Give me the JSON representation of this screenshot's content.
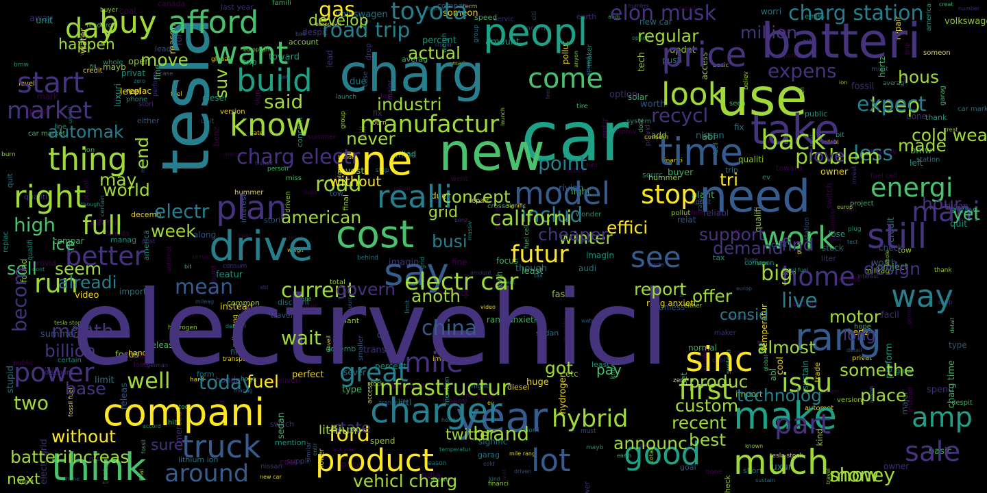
{
  "palette": {
    "purple": "#46337e",
    "indigo": "#440154",
    "blue": "#365c8d",
    "teal": "#277f8e",
    "green": "#1fa187",
    "lightgreen": "#4ac16d",
    "lime": "#a0da39",
    "yellow": "#fde725",
    "background": "#000000"
  },
  "words": [
    {
      "text": "electrvehicl",
      "color": "#46337e"
    },
    {
      "text": "car",
      "color": "#1fa187"
    },
    {
      "text": "tesla",
      "color": "#277f8e"
    },
    {
      "text": "charg",
      "color": "#277f8e"
    },
    {
      "text": "new",
      "color": "#4ac16d"
    },
    {
      "text": "need",
      "color": "#365c8d"
    },
    {
      "text": "use",
      "color": "#a0da39"
    },
    {
      "text": "batteri",
      "color": "#46337e"
    },
    {
      "text": "price",
      "color": "#46337e"
    },
    {
      "text": "take",
      "color": "#46337e"
    },
    {
      "text": "time",
      "color": "#365c8d"
    },
    {
      "text": "peopl",
      "color": "#1fa187"
    },
    {
      "text": "one",
      "color": "#fde725"
    },
    {
      "text": "year",
      "color": "#365c8d"
    },
    {
      "text": "cost",
      "color": "#4ac16d"
    },
    {
      "text": "drive",
      "color": "#277f8e"
    },
    {
      "text": "say",
      "color": "#365c8d"
    },
    {
      "text": "compani",
      "color": "#fde725"
    },
    {
      "text": "think",
      "color": "#4ac16d"
    },
    {
      "text": "make",
      "color": "#1fa187"
    },
    {
      "text": "much",
      "color": "#a0da39"
    },
    {
      "text": "still",
      "color": "#46337e"
    },
    {
      "text": "rang",
      "color": "#365c8d"
    },
    {
      "text": "way",
      "color": "#277f8e"
    },
    {
      "text": "model",
      "color": "#365c8d"
    },
    {
      "text": "realli",
      "color": "#277f8e"
    },
    {
      "text": "charger",
      "color": "#277f8e"
    },
    {
      "text": "product",
      "color": "#fde725"
    },
    {
      "text": "mile",
      "color": "#46337e"
    },
    {
      "text": "plan",
      "color": "#46337e"
    },
    {
      "text": "want",
      "color": "#4ac16d"
    },
    {
      "text": "buy",
      "color": "#a0da39"
    },
    {
      "text": "afford",
      "color": "#4ac16d"
    },
    {
      "text": "day",
      "color": "#a0da39"
    },
    {
      "text": "know",
      "color": "#a0da39"
    },
    {
      "text": "build",
      "color": "#1fa187"
    },
    {
      "text": "come",
      "color": "#4ac16d"
    },
    {
      "text": "look",
      "color": "#a0da39"
    },
    {
      "text": "back",
      "color": "#a0da39"
    },
    {
      "text": "thing",
      "color": "#a0da39"
    },
    {
      "text": "right",
      "color": "#a0da39"
    },
    {
      "text": "start",
      "color": "#46337e"
    },
    {
      "text": "market",
      "color": "#46337e"
    },
    {
      "text": "energi",
      "color": "#4ac16d"
    },
    {
      "text": "work",
      "color": "#4ac16d"
    },
    {
      "text": "good",
      "color": "#1fa187"
    },
    {
      "text": "amp",
      "color": "#1fa187"
    },
    {
      "text": "hybrid",
      "color": "#a0da39"
    },
    {
      "text": "first",
      "color": "#a0da39"
    },
    {
      "text": "issu",
      "color": "#a0da39"
    },
    {
      "text": "electr car",
      "color": "#a0da39"
    },
    {
      "text": "futur",
      "color": "#fde725"
    },
    {
      "text": "infrastructur",
      "color": "#a0da39"
    },
    {
      "text": "manufactur",
      "color": "#a0da39"
    },
    {
      "text": "truck",
      "color": "#365c8d"
    },
    {
      "text": "power",
      "color": "#46337e"
    },
    {
      "text": "around",
      "color": "#365c8d"
    },
    {
      "text": "lot",
      "color": "#365c8d"
    },
    {
      "text": "great",
      "color": "#277f8e"
    },
    {
      "text": "well",
      "color": "#a0da39"
    },
    {
      "text": "full",
      "color": "#a0da39"
    },
    {
      "text": "better",
      "color": "#46337e"
    },
    {
      "text": "home",
      "color": "#46337e"
    },
    {
      "text": "live",
      "color": "#277f8e"
    },
    {
      "text": "big",
      "color": "#a0da39"
    },
    {
      "text": "stop",
      "color": "#fde725"
    },
    {
      "text": "see",
      "color": "#365c8d"
    },
    {
      "text": "mani",
      "color": "#46337e"
    },
    {
      "text": "sale",
      "color": "#46337e"
    },
    {
      "text": "part",
      "color": "#46337e"
    },
    {
      "text": "less",
      "color": "#277f8e"
    },
    {
      "text": "problem",
      "color": "#a0da39"
    },
    {
      "text": "keep",
      "color": "#a0da39"
    },
    {
      "text": "expect",
      "color": "#277f8e"
    },
    {
      "text": "toyota",
      "color": "#277f8e"
    },
    {
      "text": "gas",
      "color": "#fde725"
    },
    {
      "text": "road",
      "color": "#a0da39"
    },
    {
      "text": "road trip",
      "color": "#277f8e"
    },
    {
      "text": "elon musk",
      "color": "#46337e"
    },
    {
      "text": "charg station",
      "color": "#277f8e"
    },
    {
      "text": "charg electr",
      "color": "#46337e"
    },
    {
      "text": "said",
      "color": "#a0da39"
    },
    {
      "text": "includ",
      "color": "#277f8e"
    },
    {
      "text": "recycl",
      "color": "#46337e"
    },
    {
      "text": "point",
      "color": "#277f8e"
    },
    {
      "text": "mean",
      "color": "#365c8d"
    },
    {
      "text": "current",
      "color": "#a0da39"
    },
    {
      "text": "run",
      "color": "#a0da39"
    },
    {
      "text": "ice",
      "color": "#4ac16d"
    },
    {
      "text": "sell",
      "color": "#4ac16d"
    },
    {
      "text": "high",
      "color": "#4ac16d"
    },
    {
      "text": "month",
      "color": "#46337e"
    },
    {
      "text": "two",
      "color": "#a0da39"
    },
    {
      "text": "china",
      "color": "#365c8d"
    },
    {
      "text": "wait",
      "color": "#a0da39"
    },
    {
      "text": "today",
      "color": "#277f8e"
    },
    {
      "text": "fuel",
      "color": "#fde725"
    },
    {
      "text": "ford",
      "color": "#fde725"
    },
    {
      "text": "brand",
      "color": "#a0da39"
    },
    {
      "text": "show",
      "color": "#a0da39"
    },
    {
      "text": "without",
      "color": "#fde725"
    },
    {
      "text": "vehicl charg",
      "color": "#a0da39"
    },
    {
      "text": "batteriincreas",
      "color": "#a0da39"
    },
    {
      "text": "next",
      "color": "#a0da39"
    },
    {
      "text": "place",
      "color": "#a0da39"
    },
    {
      "text": "somethe",
      "color": "#a0da39"
    },
    {
      "text": "sinc",
      "color": "#fde725"
    },
    {
      "text": "electr",
      "color": "#277f8e"
    },
    {
      "text": "week",
      "color": "#a0da39"
    },
    {
      "text": "winter",
      "color": "#a0da39"
    },
    {
      "text": "effici",
      "color": "#fde725"
    },
    {
      "text": "demand",
      "color": "#46337e"
    },
    {
      "text": "design",
      "color": "#46337e"
    },
    {
      "text": "hour",
      "color": "#46337e"
    },
    {
      "text": "yet",
      "color": "#4ac16d"
    },
    {
      "text": "tri",
      "color": "#fde725"
    },
    {
      "text": "american",
      "color": "#a0da39"
    },
    {
      "text": "californi",
      "color": "#a0da39"
    },
    {
      "text": "expens",
      "color": "#46337e"
    },
    {
      "text": "actual",
      "color": "#a0da39"
    },
    {
      "text": "develop",
      "color": "#a0da39"
    },
    {
      "text": "happen",
      "color": "#a0da39"
    },
    {
      "text": "never",
      "color": "#a0da39"
    },
    {
      "text": "industri",
      "color": "#a0da39"
    },
    {
      "text": "cheaper",
      "color": "#46337e"
    },
    {
      "text": "report",
      "color": "#a0da39"
    },
    {
      "text": "offer",
      "color": "#a0da39"
    },
    {
      "text": "consid",
      "color": "#277f8e"
    },
    {
      "text": "long",
      "color": "#46337e"
    },
    {
      "text": "almost",
      "color": "#a0da39"
    },
    {
      "text": "motor",
      "color": "#a0da39"
    },
    {
      "text": "got",
      "color": "#a0da39"
    },
    {
      "text": "recent",
      "color": "#a0da39"
    },
    {
      "text": "announc",
      "color": "#a0da39"
    },
    {
      "text": "best",
      "color": "#a0da39"
    },
    {
      "text": "technolog",
      "color": "#277f8e"
    },
    {
      "text": "custom",
      "color": "#a0da39"
    },
    {
      "text": "produc",
      "color": "#a0da39"
    },
    {
      "text": "pay",
      "color": "#4ac16d"
    },
    {
      "text": "cold weather",
      "color": "#a0da39"
    },
    {
      "text": "made",
      "color": "#a0da39"
    },
    {
      "text": "support",
      "color": "#46337e"
    },
    {
      "text": "regular",
      "color": "#a0da39"
    },
    {
      "text": "million",
      "color": "#46337e"
    },
    {
      "text": "find",
      "color": "#46337e"
    },
    {
      "text": "hous",
      "color": "#a0da39"
    },
    {
      "text": "love",
      "color": "#46337e"
    },
    {
      "text": "billion",
      "color": "#46337e"
    },
    {
      "text": "becom",
      "color": "#46337e"
    },
    {
      "text": "automak",
      "color": "#277f8e"
    },
    {
      "text": "alreadi",
      "color": "#277f8e"
    },
    {
      "text": "seem",
      "color": "#a0da39"
    },
    {
      "text": "move",
      "color": "#a0da39"
    },
    {
      "text": "base",
      "color": "#46337e"
    },
    {
      "text": "anoth",
      "color": "#a0da39"
    },
    {
      "text": "govern",
      "color": "#46337e"
    },
    {
      "text": "state",
      "color": "#46337e"
    },
    {
      "text": "concept",
      "color": "#a0da39"
    },
    {
      "text": "grid",
      "color": "#a0da39"
    },
    {
      "text": "busi",
      "color": "#277f8e"
    },
    {
      "text": "end",
      "color": "#a0da39"
    },
    {
      "text": "may",
      "color": "#a0da39"
    },
    {
      "text": "suv",
      "color": "#a0da39"
    },
    {
      "text": "world",
      "color": "#a0da39"
    },
    {
      "text": "sure",
      "color": "#46337e"
    },
    {
      "text": "lithium",
      "color": "#a0da39"
    },
    {
      "text": "twitter",
      "color": "#a0da39"
    },
    {
      "text": "money",
      "color": "#a0da39"
    },
    {
      "text": "without",
      "color": "#fde725"
    }
  ],
  "tiny_words": [
    "amount",
    "deliveri",
    "reason",
    "consum",
    "plug",
    "resourc",
    "station",
    "basic",
    "citi",
    "quit",
    "releas",
    "found",
    "group",
    "canada",
    "improv",
    "wonder",
    "signific",
    "project",
    "percent",
    "detail",
    "servic",
    "transport",
    "interest",
    "certain",
    "person",
    "instead",
    "handl",
    "goal",
    "tax",
    "credit",
    "invest",
    "concern",
    "massiv",
    "ion",
    "trade",
    "suppli",
    "line",
    "mind",
    "hope",
    "honda",
    "famili",
    "qualifi",
    "spend",
    "stock",
    "drop",
    "fill",
    "number",
    "speed",
    "bmw",
    "hydrogen",
    "burn",
    "seen",
    "sustain",
    "case",
    "lead",
    "video",
    "solar",
    "plant",
    "creat",
    "open",
    "fine",
    "mileag",
    "abl",
    "final",
    "averag",
    "abl",
    "total",
    "set",
    "stock",
    "limit",
    "repair",
    "coal",
    "discount",
    "parts",
    "nissan",
    "hertz",
    "launch",
    "america",
    "earth",
    "push",
    "version",
    "lose",
    "kind",
    "option",
    "unveil",
    "worth",
    "away",
    "buyer",
    "cool",
    "though",
    "anyon",
    "add",
    "someon",
    "either",
    "access",
    "grow",
    "term",
    "heat",
    "liter",
    "etc",
    "left",
    "form",
    "replac",
    "short",
    "worri",
    "known",
    "global",
    "least",
    "park",
    "europ",
    "similar",
    "unit",
    "water",
    "feel",
    "charg time",
    "tech",
    "post",
    "relat",
    "unless",
    "smaller",
    "lower",
    "bad",
    "rate",
    "manag",
    "due",
    "sourc",
    "zero",
    "went",
    "tow",
    "behind",
    "accord",
    "bit",
    "perform",
    "far",
    "mayb",
    "might",
    "stori",
    "last year",
    "european",
    "ev",
    "fast",
    "focus",
    "hit",
    "believ",
    "trip",
    "done",
    "provid",
    "along",
    "sever",
    "emiss",
    "car market",
    "perfect",
    "reliabl",
    "major",
    "mile rang",
    "check",
    "despit",
    "bill",
    "hard",
    "temperatur",
    "system",
    "owner",
    "mark",
    "dont",
    "step",
    "updat",
    "merced",
    "benz",
    "cold",
    "import",
    "qualiti",
    "compar",
    "stupid",
    "german",
    "summer",
    "fuel cell",
    "new car",
    "phone",
    "japan",
    "tire",
    "type",
    "sign",
    "littl",
    "switch",
    "huge",
    "common",
    "hummer",
    "maker",
    "volkswagen",
    "automot",
    "electr grid",
    "tesla stock",
    "india",
    "whole",
    "luxuri",
    "decemb",
    "answer",
    "public",
    "must",
    "diesel",
    "test",
    "financi",
    "rivian",
    "facil",
    "space",
    "fix",
    "light",
    "sedan",
    "driven",
    "entir",
    "garag",
    "thank",
    "audi",
    "toward",
    "normal",
    "miss",
    "privat",
    "weigh",
    "mention",
    "lithium ion",
    "travel",
    "transit",
    "level",
    "pollut",
    "crossov",
    "imagin",
    "account",
    "kwh",
    "featur",
    "rang anxieti",
    "fossil fuel",
    "fossil"
  ],
  "tiny_colors": [
    "#440154",
    "#46337e",
    "#365c8d",
    "#277f8e",
    "#1fa187",
    "#4ac16d",
    "#a0da39",
    "#fde725"
  ]
}
